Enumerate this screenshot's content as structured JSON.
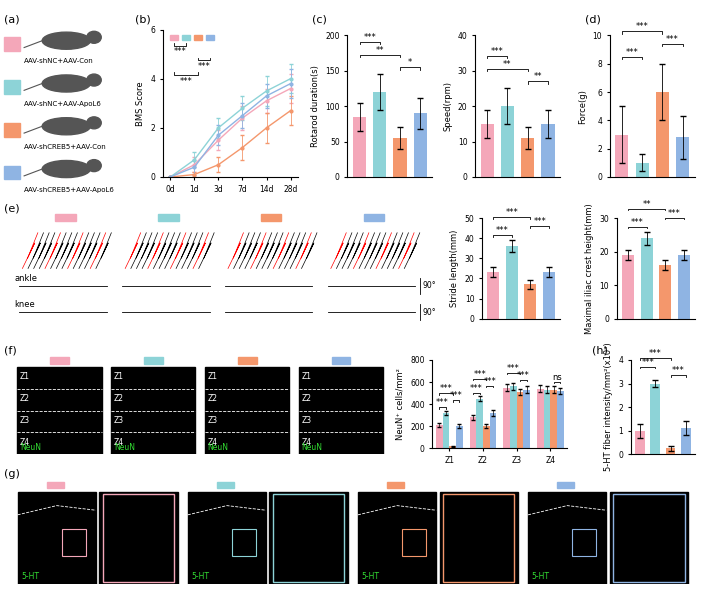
{
  "legend_groups": [
    {
      "name": "AAV-shNC+AAV-Con",
      "color": "#f4a7b9"
    },
    {
      "name": "AAV-shNC+AAV-ApoL6",
      "color": "#8dd3d7"
    },
    {
      "name": "AAV-shCREB5+AAV-Con",
      "color": "#f4976c"
    },
    {
      "name": "AAV-shCREB5+AAV-ApoL6",
      "color": "#8fb4e3"
    }
  ],
  "panel_labels": [
    "(a)",
    "(b)",
    "(c)",
    "(d)",
    "(e)",
    "(f)",
    "(g)",
    "(h)"
  ],
  "gait": {
    "traces": [
      "ankle",
      "knee"
    ],
    "angle": "90°"
  },
  "images": {
    "f": {
      "stain": "NeuN",
      "zones": [
        "Z1",
        "Z2",
        "Z3",
        "Z4"
      ]
    },
    "g": {
      "stain": "5-HT"
    }
  },
  "chart_data": [
    {
      "type": "line",
      "y_label": "BMS Score",
      "categories": [
        "0d",
        "1d",
        "3d",
        "7d",
        "14d",
        "28d"
      ],
      "ylim": [
        0,
        6
      ],
      "yticks": [
        0,
        2,
        4,
        6
      ],
      "series": [
        {
          "color": "#f4a7b9",
          "values": [
            0,
            0.5,
            1.5,
            2.4,
            3.1,
            3.6
          ],
          "errors": [
            0,
            0.3,
            0.4,
            0.5,
            0.5,
            0.6
          ]
        },
        {
          "color": "#8dd3d7",
          "values": [
            0,
            0.7,
            2.0,
            2.8,
            3.5,
            4.0
          ],
          "errors": [
            0,
            0.3,
            0.4,
            0.5,
            0.6,
            0.6
          ]
        },
        {
          "color": "#f4976c",
          "values": [
            0,
            0.1,
            0.5,
            1.2,
            2.0,
            2.7
          ],
          "errors": [
            0,
            0.1,
            0.3,
            0.5,
            0.6,
            0.6
          ]
        },
        {
          "color": "#8fb4e3",
          "values": [
            0,
            0.4,
            1.7,
            2.5,
            3.3,
            3.8
          ],
          "errors": [
            0,
            0.3,
            0.4,
            0.5,
            0.5,
            0.6
          ]
        }
      ],
      "significance": [
        {
          "pair": [
            0,
            1
          ],
          "label": "***"
        },
        {
          "pair": [
            2,
            3
          ],
          "label": "***"
        },
        {
          "pair": [
            0,
            2
          ],
          "label": "***"
        }
      ]
    },
    {
      "type": "bar",
      "y_label": "Rotarod duration(s)",
      "tick_labels": "y",
      "categories": [
        "AAV-shNC+AAV-Con",
        "AAV-shNC+AAV-ApoL6",
        "AAV-shCREB5+AAV-Con",
        "AAV-shCREB5+AAV-ApoL6"
      ],
      "values": [
        85,
        120,
        55,
        90
      ],
      "errors": [
        20,
        25,
        15,
        22
      ],
      "colors": [
        "#f4a7b9",
        "#8dd3d7",
        "#f4976c",
        "#8fb4e3"
      ],
      "ylim": [
        0,
        200
      ],
      "yticks": [
        0,
        50,
        100,
        150,
        200
      ],
      "significance": [
        {
          "pair": [
            2,
            3
          ],
          "label": "*"
        },
        {
          "pair": [
            0,
            2
          ],
          "label": "**"
        },
        {
          "pair": [
            0,
            1
          ],
          "label": "***"
        }
      ]
    },
    {
      "type": "bar",
      "y_label": "Speed(rpm)",
      "tick_labels": "y",
      "categories": [
        "AAV-shNC+AAV-Con",
        "AAV-shNC+AAV-ApoL6",
        "AAV-shCREB5+AAV-Con",
        "AAV-shCREB5+AAV-ApoL6"
      ],
      "values": [
        15,
        20,
        11,
        15
      ],
      "errors": [
        4,
        5,
        3,
        4
      ],
      "colors": [
        "#f4a7b9",
        "#8dd3d7",
        "#f4976c",
        "#8fb4e3"
      ],
      "ylim": [
        0,
        40
      ],
      "yticks": [
        0,
        10,
        20,
        30,
        40
      ],
      "significance": [
        {
          "pair": [
            2,
            3
          ],
          "label": "**"
        },
        {
          "pair": [
            0,
            2
          ],
          "label": "**"
        },
        {
          "pair": [
            0,
            1
          ],
          "label": "***"
        }
      ]
    },
    {
      "type": "bar",
      "y_label": "Force(g)",
      "tick_labels": "y",
      "categories": [
        "AAV-shNC+AAV-Con",
        "AAV-shNC+AAV-ApoL6",
        "AAV-shCREB5+AAV-Con",
        "AAV-shCREB5+AAV-ApoL6"
      ],
      "values": [
        3.0,
        1.0,
        6.0,
        2.8
      ],
      "errors": [
        2.0,
        0.6,
        2.0,
        1.5
      ],
      "colors": [
        "#f4a7b9",
        "#8dd3d7",
        "#f4976c",
        "#8fb4e3"
      ],
      "ylim": [
        0,
        10
      ],
      "yticks": [
        0,
        2,
        4,
        6,
        8,
        10
      ],
      "significance": [
        {
          "pair": [
            0,
            1
          ],
          "label": "***"
        },
        {
          "pair": [
            2,
            3
          ],
          "label": "***"
        },
        {
          "pair": [
            0,
            2
          ],
          "label": "***"
        }
      ]
    },
    {
      "type": "bar",
      "y_label": "Stride length(mm)",
      "tick_labels": "y",
      "categories": [
        "AAV-shNC+AAV-Con",
        "AAV-shNC+AAV-ApoL6",
        "AAV-shCREB5+AAV-Con",
        "AAV-shCREB5+AAV-ApoL6"
      ],
      "values": [
        23,
        36,
        17,
        23
      ],
      "errors": [
        2.5,
        3,
        2,
        2.5
      ],
      "colors": [
        "#f4a7b9",
        "#8dd3d7",
        "#f4976c",
        "#8fb4e3"
      ],
      "ylim": [
        0,
        50
      ],
      "yticks": [
        0,
        10,
        20,
        30,
        40,
        50
      ],
      "significance": [
        {
          "pair": [
            0,
            1
          ],
          "label": "***"
        },
        {
          "pair": [
            2,
            3
          ],
          "label": "***"
        },
        {
          "pair": [
            0,
            2
          ],
          "label": "***"
        }
      ]
    },
    {
      "type": "bar",
      "y_label": "Maximal iliac crest height(mm)",
      "tick_labels": "y",
      "categories": [
        "AAV-shNC+AAV-Con",
        "AAV-shNC+AAV-ApoL6",
        "AAV-shCREB5+AAV-Con",
        "AAV-shCREB5+AAV-ApoL6"
      ],
      "values": [
        19,
        24,
        16,
        19
      ],
      "errors": [
        1.5,
        2,
        1.5,
        1.5
      ],
      "colors": [
        "#f4a7b9",
        "#8dd3d7",
        "#f4976c",
        "#8fb4e3"
      ],
      "ylim": [
        0,
        30
      ],
      "yticks": [
        0,
        10,
        20,
        30
      ],
      "significance": [
        {
          "pair": [
            0,
            1
          ],
          "label": "***"
        },
        {
          "pair": [
            2,
            3
          ],
          "label": "***"
        },
        {
          "pair": [
            0,
            2
          ],
          "label": "**"
        }
      ]
    },
    {
      "type": "grouped_bar",
      "y_label": "NeuN⁺ cells/mm²",
      "categories": [
        "Z1",
        "Z2",
        "Z3",
        "Z4"
      ],
      "ylim": [
        0,
        800
      ],
      "yticks": [
        0,
        200,
        400,
        600,
        800
      ],
      "series": [
        {
          "color": "#f4a7b9",
          "values": [
            210,
            280,
            550,
            540
          ],
          "errors": [
            20,
            25,
            30,
            30
          ]
        },
        {
          "color": "#8dd3d7",
          "values": [
            320,
            450,
            560,
            530
          ],
          "errors": [
            20,
            20,
            30,
            30
          ]
        },
        {
          "color": "#f4976c",
          "values": [
            20,
            200,
            510,
            530
          ],
          "errors": [
            5,
            20,
            30,
            30
          ]
        },
        {
          "color": "#8fb4e3",
          "values": [
            200,
            320,
            530,
            520
          ],
          "errors": [
            20,
            25,
            30,
            30
          ]
        }
      ],
      "significance": [
        [
          {
            "pair": [
              0,
              1
            ],
            "label": "***"
          },
          {
            "pair": [
              2,
              3
            ],
            "label": "***"
          },
          {
            "pair": [
              0,
              2
            ],
            "label": "***"
          }
        ],
        [
          {
            "pair": [
              0,
              1
            ],
            "label": "***"
          },
          {
            "pair": [
              2,
              3
            ],
            "label": "***"
          },
          {
            "pair": [
              0,
              2
            ],
            "label": "***"
          }
        ],
        [
          {
            "pair": [
              2,
              3
            ],
            "label": "***"
          },
          {
            "pair": [
              0,
              2
            ],
            "label": "***"
          }
        ],
        [
          {
            "pair": [
              2,
              3
            ],
            "label": "ns"
          }
        ]
      ]
    },
    {
      "type": "bar",
      "y_label": "5-HT fiber intensity/mm²(x10³)",
      "tick_labels": "y",
      "categories": [
        "AAV-shNC+AAV-Con",
        "AAV-shNC+AAV-ApoL6",
        "AAV-shCREB5+AAV-Con",
        "AAV-shCREB5+AAV-ApoL6"
      ],
      "values": [
        1.0,
        3.0,
        0.25,
        1.1
      ],
      "errors": [
        0.3,
        0.15,
        0.1,
        0.3
      ],
      "colors": [
        "#f4a7b9",
        "#8dd3d7",
        "#f4976c",
        "#8fb4e3"
      ],
      "ylim": [
        0,
        4
      ],
      "yticks": [
        0,
        1,
        2,
        3,
        4
      ],
      "significance": [
        {
          "pair": [
            2,
            3
          ],
          "label": "***"
        },
        {
          "pair": [
            0,
            1
          ],
          "label": "***"
        },
        {
          "pair": [
            0,
            2
          ],
          "label": "***"
        }
      ]
    }
  ]
}
